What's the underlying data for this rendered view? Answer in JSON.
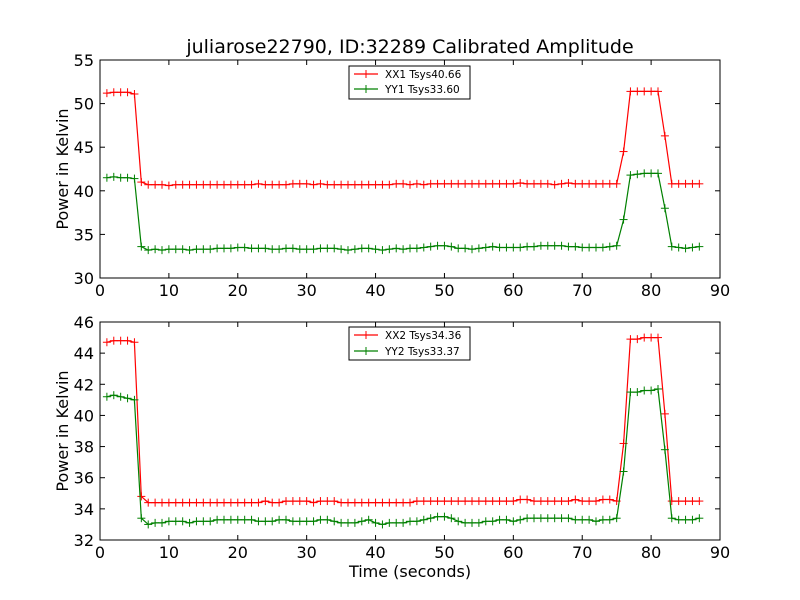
{
  "chart_data": [
    {
      "type": "line",
      "title": "juliarose22790, ID:32289 Calibrated Amplitude",
      "xlabel": "",
      "ylabel": "Power in Kelvin",
      "xlim": [
        0,
        90
      ],
      "ylim": [
        30,
        55
      ],
      "xticks": [
        "0",
        "10",
        "20",
        "30",
        "40",
        "50",
        "60",
        "70",
        "80",
        "90"
      ],
      "yticks": [
        "30",
        "35",
        "40",
        "45",
        "50",
        "55"
      ],
      "legend_position": "top-center",
      "x": [
        1,
        2,
        3,
        4,
        5,
        6,
        7,
        8,
        9,
        10,
        11,
        12,
        13,
        14,
        15,
        16,
        17,
        18,
        19,
        20,
        21,
        22,
        23,
        24,
        25,
        26,
        27,
        28,
        29,
        30,
        31,
        32,
        33,
        34,
        35,
        36,
        37,
        38,
        39,
        40,
        41,
        42,
        43,
        44,
        45,
        46,
        47,
        48,
        49,
        50,
        51,
        52,
        53,
        54,
        55,
        56,
        57,
        58,
        59,
        60,
        61,
        62,
        63,
        64,
        65,
        66,
        67,
        68,
        69,
        70,
        71,
        72,
        73,
        74,
        75,
        76,
        77,
        78,
        79,
        80,
        81,
        82,
        83,
        84,
        85,
        86,
        87
      ],
      "series": [
        {
          "name": "XX1 Tsys40.66",
          "color": "#ff0000",
          "values": [
            51.2,
            51.3,
            51.3,
            51.3,
            51.1,
            41.0,
            40.7,
            40.7,
            40.7,
            40.6,
            40.7,
            40.7,
            40.7,
            40.7,
            40.7,
            40.7,
            40.7,
            40.7,
            40.7,
            40.7,
            40.7,
            40.7,
            40.8,
            40.7,
            40.7,
            40.7,
            40.7,
            40.8,
            40.8,
            40.8,
            40.7,
            40.8,
            40.7,
            40.7,
            40.7,
            40.7,
            40.7,
            40.7,
            40.7,
            40.7,
            40.7,
            40.7,
            40.8,
            40.8,
            40.7,
            40.8,
            40.7,
            40.8,
            40.8,
            40.8,
            40.8,
            40.8,
            40.8,
            40.8,
            40.8,
            40.8,
            40.8,
            40.8,
            40.8,
            40.8,
            40.9,
            40.8,
            40.8,
            40.8,
            40.8,
            40.7,
            40.8,
            40.9,
            40.8,
            40.8,
            40.8,
            40.8,
            40.8,
            40.8,
            40.8,
            44.5,
            51.4,
            51.4,
            51.4,
            51.4,
            51.4,
            46.3,
            40.8,
            40.8,
            40.8,
            40.8,
            40.8
          ]
        },
        {
          "name": "YY1 Tsys33.60",
          "color": "#008000",
          "values": [
            41.5,
            41.6,
            41.5,
            41.5,
            41.4,
            33.6,
            33.2,
            33.3,
            33.2,
            33.3,
            33.3,
            33.3,
            33.2,
            33.3,
            33.3,
            33.3,
            33.4,
            33.4,
            33.4,
            33.5,
            33.5,
            33.4,
            33.4,
            33.4,
            33.3,
            33.3,
            33.4,
            33.4,
            33.3,
            33.3,
            33.3,
            33.4,
            33.4,
            33.4,
            33.3,
            33.2,
            33.3,
            33.4,
            33.4,
            33.3,
            33.2,
            33.3,
            33.4,
            33.3,
            33.4,
            33.4,
            33.5,
            33.6,
            33.7,
            33.7,
            33.6,
            33.4,
            33.4,
            33.3,
            33.4,
            33.5,
            33.6,
            33.5,
            33.5,
            33.5,
            33.5,
            33.6,
            33.6,
            33.7,
            33.7,
            33.7,
            33.7,
            33.6,
            33.6,
            33.5,
            33.5,
            33.5,
            33.5,
            33.6,
            33.7,
            36.7,
            41.8,
            41.9,
            42.0,
            42.0,
            42.0,
            38.0,
            33.6,
            33.5,
            33.4,
            33.5,
            33.6
          ]
        }
      ]
    },
    {
      "type": "line",
      "title": "",
      "xlabel": "Time (seconds)",
      "ylabel": "Power in Kelvin",
      "xlim": [
        0,
        90
      ],
      "ylim": [
        32,
        46
      ],
      "xticks": [
        "0",
        "10",
        "20",
        "30",
        "40",
        "50",
        "60",
        "70",
        "80",
        "90"
      ],
      "yticks": [
        "32",
        "34",
        "36",
        "38",
        "40",
        "42",
        "44",
        "46"
      ],
      "legend_position": "top-center",
      "x": [
        1,
        2,
        3,
        4,
        5,
        6,
        7,
        8,
        9,
        10,
        11,
        12,
        13,
        14,
        15,
        16,
        17,
        18,
        19,
        20,
        21,
        22,
        23,
        24,
        25,
        26,
        27,
        28,
        29,
        30,
        31,
        32,
        33,
        34,
        35,
        36,
        37,
        38,
        39,
        40,
        41,
        42,
        43,
        44,
        45,
        46,
        47,
        48,
        49,
        50,
        51,
        52,
        53,
        54,
        55,
        56,
        57,
        58,
        59,
        60,
        61,
        62,
        63,
        64,
        65,
        66,
        67,
        68,
        69,
        70,
        71,
        72,
        73,
        74,
        75,
        76,
        77,
        78,
        79,
        80,
        81,
        82,
        83,
        84,
        85,
        86,
        87
      ],
      "series": [
        {
          "name": "XX2 Tsys34.36",
          "color": "#ff0000",
          "values": [
            44.7,
            44.8,
            44.8,
            44.8,
            44.7,
            34.8,
            34.4,
            34.4,
            34.4,
            34.4,
            34.4,
            34.4,
            34.4,
            34.4,
            34.4,
            34.4,
            34.4,
            34.4,
            34.4,
            34.4,
            34.4,
            34.4,
            34.4,
            34.5,
            34.4,
            34.4,
            34.5,
            34.5,
            34.5,
            34.5,
            34.4,
            34.5,
            34.5,
            34.5,
            34.4,
            34.4,
            34.4,
            34.4,
            34.4,
            34.4,
            34.4,
            34.4,
            34.4,
            34.4,
            34.4,
            34.5,
            34.5,
            34.5,
            34.5,
            34.5,
            34.5,
            34.5,
            34.5,
            34.5,
            34.5,
            34.5,
            34.5,
            34.5,
            34.5,
            34.5,
            34.6,
            34.6,
            34.5,
            34.5,
            34.5,
            34.5,
            34.5,
            34.5,
            34.6,
            34.5,
            34.5,
            34.5,
            34.6,
            34.6,
            34.5,
            38.2,
            44.9,
            44.9,
            45.0,
            45.0,
            45.0,
            40.1,
            34.5,
            34.5,
            34.5,
            34.5,
            34.5
          ]
        },
        {
          "name": "YY2 Tsys33.37",
          "color": "#008000",
          "values": [
            41.2,
            41.3,
            41.2,
            41.1,
            41.0,
            33.4,
            33.0,
            33.1,
            33.1,
            33.2,
            33.2,
            33.2,
            33.1,
            33.2,
            33.2,
            33.2,
            33.3,
            33.3,
            33.3,
            33.3,
            33.3,
            33.3,
            33.2,
            33.2,
            33.2,
            33.3,
            33.3,
            33.2,
            33.2,
            33.2,
            33.2,
            33.3,
            33.3,
            33.2,
            33.1,
            33.1,
            33.1,
            33.2,
            33.3,
            33.1,
            33.0,
            33.1,
            33.1,
            33.1,
            33.2,
            33.2,
            33.3,
            33.4,
            33.5,
            33.5,
            33.4,
            33.2,
            33.1,
            33.1,
            33.1,
            33.2,
            33.2,
            33.3,
            33.3,
            33.2,
            33.3,
            33.4,
            33.4,
            33.4,
            33.4,
            33.4,
            33.4,
            33.4,
            33.3,
            33.3,
            33.3,
            33.2,
            33.3,
            33.3,
            33.4,
            36.4,
            41.5,
            41.5,
            41.6,
            41.6,
            41.7,
            37.8,
            33.4,
            33.3,
            33.3,
            33.3,
            33.4
          ]
        }
      ]
    }
  ]
}
